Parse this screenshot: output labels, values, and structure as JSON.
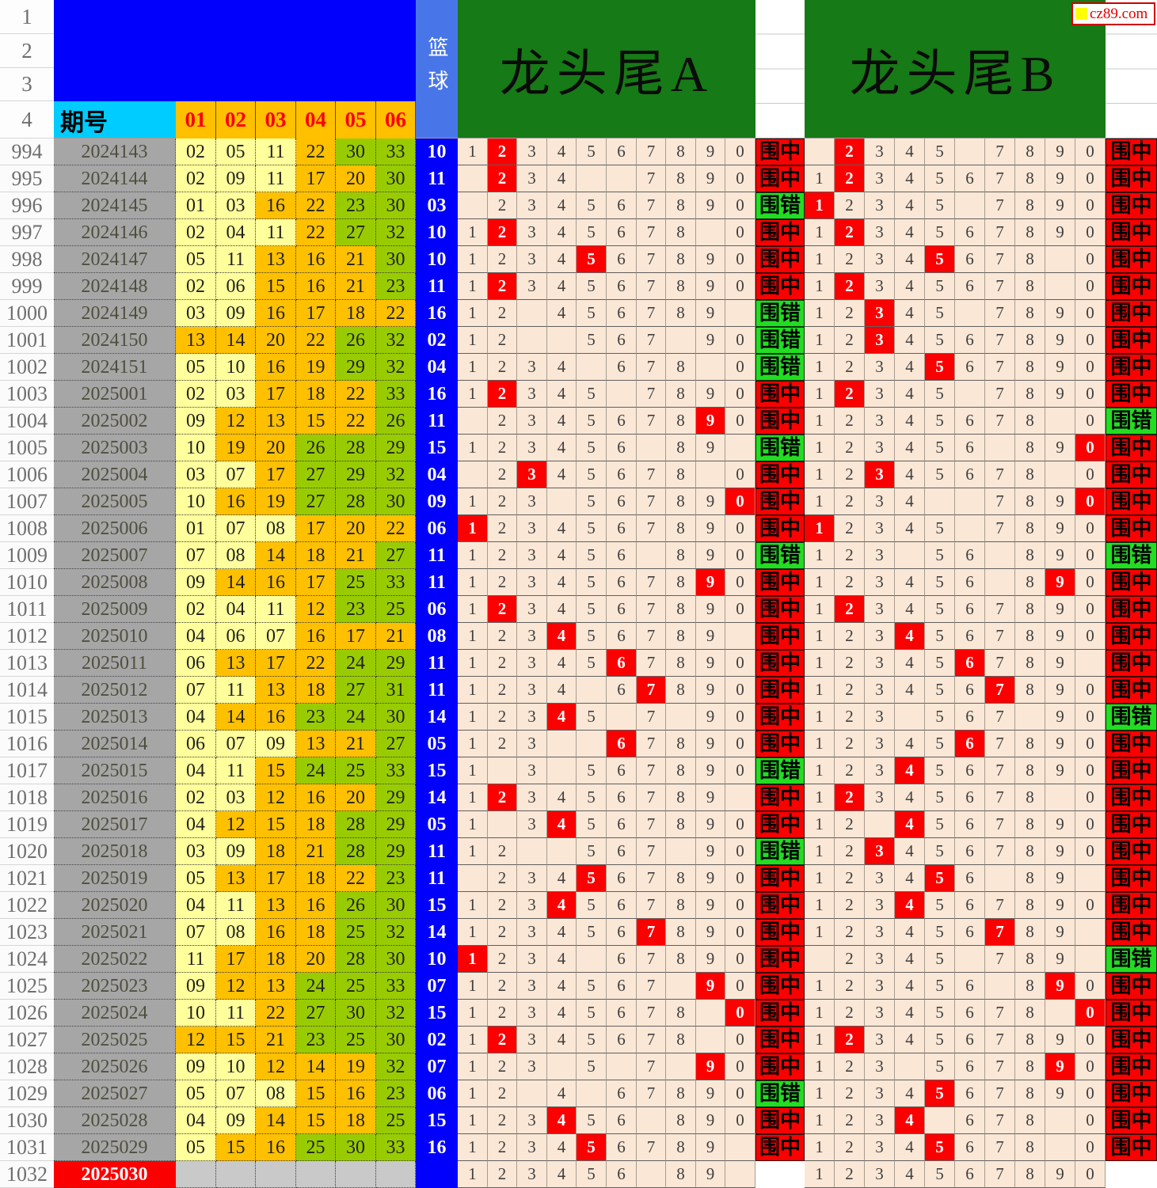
{
  "brand": {
    "site": "cz89.com"
  },
  "header": {
    "corner_rows": [
      "1",
      "2",
      "3",
      "4"
    ],
    "period_label": "期号",
    "ball_headers": [
      "01",
      "02",
      "03",
      "04",
      "05",
      "06"
    ],
    "basketball_label": "篮球",
    "section_a_title": "龙头尾A",
    "section_b_title": "龙头尾B"
  },
  "results": {
    "hit": "围中",
    "miss": "围错"
  },
  "colors": {
    "hit_bg": "#FB0000",
    "miss_bg": "#22DD22",
    "highlight": "#FB0000",
    "section_green": "#167A16",
    "ball_low": "#FFFF9C",
    "ball_mid": "#FFC000",
    "ball_high": "#99CC00",
    "blue_ball": "#0000FC",
    "period_gray": "#A6A6A6",
    "digit_bg": "#FAE7D6",
    "header_cyan": "#00CCFF",
    "header_orange": "#FFC000"
  },
  "rows": [
    {
      "n": "994",
      "p": "2024143",
      "balls": [
        "02",
        "05",
        "11",
        "22",
        "30",
        "33"
      ],
      "blue": "10",
      "a": "1234567890",
      "ar": 1,
      "ares": "hit",
      "b": ".2345.7890",
      "br": 1,
      "bres": "hit"
    },
    {
      "n": "995",
      "p": "2024144",
      "balls": [
        "02",
        "09",
        "11",
        "17",
        "20",
        "30"
      ],
      "blue": "11",
      "a": ".234..7890",
      "ar": 1,
      "ares": "hit",
      "b": "1234567890",
      "br": 1,
      "bres": "hit"
    },
    {
      "n": "996",
      "p": "2024145",
      "balls": [
        "01",
        "03",
        "16",
        "22",
        "23",
        "30"
      ],
      "blue": "03",
      "a": ".234567890",
      "ar": -1,
      "ares": "miss",
      "b": "12345.7890",
      "br": 0,
      "bres": "hit"
    },
    {
      "n": "997",
      "p": "2024146",
      "balls": [
        "02",
        "04",
        "11",
        "22",
        "27",
        "32"
      ],
      "blue": "10",
      "a": "12345678.0",
      "ar": 1,
      "ares": "hit",
      "b": "1234567890",
      "br": 1,
      "bres": "hit"
    },
    {
      "n": "998",
      "p": "2024147",
      "balls": [
        "05",
        "11",
        "13",
        "16",
        "21",
        "30"
      ],
      "blue": "10",
      "a": "1234567890",
      "ar": 4,
      "ares": "hit",
      "b": "12345678.0",
      "br": 4,
      "bres": "hit"
    },
    {
      "n": "999",
      "p": "2024148",
      "balls": [
        "02",
        "06",
        "15",
        "16",
        "21",
        "23"
      ],
      "blue": "11",
      "a": "1234567890",
      "ar": 1,
      "ares": "hit",
      "b": "12345678.0",
      "br": 1,
      "bres": "hit"
    },
    {
      "n": "1000",
      "p": "2024149",
      "balls": [
        "03",
        "09",
        "16",
        "17",
        "18",
        "22"
      ],
      "blue": "16",
      "a": "12.456789.",
      "ar": -1,
      "ares": "miss",
      "b": "12345.7890",
      "br": 2,
      "bres": "hit"
    },
    {
      "n": "1001",
      "p": "2024150",
      "balls": [
        "13",
        "14",
        "20",
        "22",
        "26",
        "32"
      ],
      "blue": "02",
      "a": "12..567.90",
      "ar": -1,
      "ares": "miss",
      "b": "1234567890",
      "br": 2,
      "bres": "hit"
    },
    {
      "n": "1002",
      "p": "2024151",
      "balls": [
        "05",
        "10",
        "16",
        "19",
        "29",
        "32"
      ],
      "blue": "04",
      "a": "1234.678.0",
      "ar": -1,
      "ares": "miss",
      "b": "1234567890",
      "br": 4,
      "bres": "hit"
    },
    {
      "n": "1003",
      "p": "2025001",
      "balls": [
        "02",
        "03",
        "17",
        "18",
        "22",
        "33"
      ],
      "blue": "16",
      "a": "12345.7890",
      "ar": 1,
      "ares": "hit",
      "b": "12345.7890",
      "br": 1,
      "bres": "hit"
    },
    {
      "n": "1004",
      "p": "2025002",
      "balls": [
        "09",
        "12",
        "13",
        "15",
        "22",
        "26"
      ],
      "blue": "11",
      "a": ".234567890",
      "ar": 8,
      "ares": "hit",
      "b": "12345678.0",
      "br": -1,
      "bres": "miss"
    },
    {
      "n": "1005",
      "p": "2025003",
      "balls": [
        "10",
        "19",
        "20",
        "26",
        "28",
        "29"
      ],
      "blue": "15",
      "a": "123456.89.",
      "ar": -1,
      "ares": "miss",
      "b": "123456.890",
      "br": 9,
      "bres": "hit"
    },
    {
      "n": "1006",
      "p": "2025004",
      "balls": [
        "03",
        "07",
        "17",
        "27",
        "29",
        "32"
      ],
      "blue": "04",
      "a": ".2345678.0",
      "ar": 2,
      "ares": "hit",
      "b": "12345678.0",
      "br": 2,
      "bres": "hit"
    },
    {
      "n": "1007",
      "p": "2025005",
      "balls": [
        "10",
        "16",
        "19",
        "27",
        "28",
        "30"
      ],
      "blue": "09",
      "a": "123.567890",
      "ar": 9,
      "ares": "hit",
      "b": "1234..7890",
      "br": 9,
      "bres": "hit"
    },
    {
      "n": "1008",
      "p": "2025006",
      "balls": [
        "01",
        "07",
        "08",
        "17",
        "20",
        "22"
      ],
      "blue": "06",
      "a": "1234567890",
      "ar": 0,
      "ares": "hit",
      "b": "12345.7890",
      "br": 0,
      "bres": "hit"
    },
    {
      "n": "1009",
      "p": "2025007",
      "balls": [
        "07",
        "08",
        "14",
        "18",
        "21",
        "27"
      ],
      "blue": "11",
      "a": "123456.890",
      "ar": -1,
      "ares": "miss",
      "b": "123.56.890",
      "br": -1,
      "bres": "miss"
    },
    {
      "n": "1010",
      "p": "2025008",
      "balls": [
        "09",
        "14",
        "16",
        "17",
        "25",
        "33"
      ],
      "blue": "11",
      "a": "1234567890",
      "ar": 8,
      "ares": "hit",
      "b": "123456.890",
      "br": 8,
      "bres": "hit"
    },
    {
      "n": "1011",
      "p": "2025009",
      "balls": [
        "02",
        "04",
        "11",
        "12",
        "23",
        "25"
      ],
      "blue": "06",
      "a": "1234567890",
      "ar": 1,
      "ares": "hit",
      "b": "1234567890",
      "br": 1,
      "bres": "hit"
    },
    {
      "n": "1012",
      "p": "2025010",
      "balls": [
        "04",
        "06",
        "07",
        "16",
        "17",
        "21"
      ],
      "blue": "08",
      "a": "123456789.",
      "ar": 3,
      "ares": "hit",
      "b": "1234567890",
      "br": 3,
      "bres": "hit"
    },
    {
      "n": "1013",
      "p": "2025011",
      "balls": [
        "06",
        "13",
        "17",
        "22",
        "24",
        "29"
      ],
      "blue": "11",
      "a": "1234567890",
      "ar": 5,
      "ares": "hit",
      "b": "123456789.",
      "br": 5,
      "bres": "hit"
    },
    {
      "n": "1014",
      "p": "2025012",
      "balls": [
        "07",
        "11",
        "13",
        "18",
        "27",
        "31"
      ],
      "blue": "11",
      "a": "1234.67890",
      "ar": 6,
      "ares": "hit",
      "b": "1234567890",
      "br": 6,
      "bres": "hit"
    },
    {
      "n": "1015",
      "p": "2025013",
      "balls": [
        "04",
        "14",
        "16",
        "23",
        "24",
        "30"
      ],
      "blue": "14",
      "a": "12345.7.90",
      "ar": 3,
      "ares": "hit",
      "b": "123.567.90",
      "br": -1,
      "bres": "miss"
    },
    {
      "n": "1016",
      "p": "2025014",
      "balls": [
        "06",
        "07",
        "09",
        "13",
        "21",
        "27"
      ],
      "blue": "05",
      "a": "123..67890",
      "ar": 5,
      "ares": "hit",
      "b": "1234567890",
      "br": 5,
      "bres": "hit"
    },
    {
      "n": "1017",
      "p": "2025015",
      "balls": [
        "04",
        "11",
        "15",
        "24",
        "25",
        "33"
      ],
      "blue": "15",
      "a": "1.3.567890",
      "ar": -1,
      "ares": "miss",
      "b": "1234567890",
      "br": 3,
      "bres": "hit"
    },
    {
      "n": "1018",
      "p": "2025016",
      "balls": [
        "02",
        "03",
        "12",
        "16",
        "20",
        "29"
      ],
      "blue": "14",
      "a": "123456789.",
      "ar": 1,
      "ares": "hit",
      "b": "12345678.0",
      "br": 1,
      "bres": "hit"
    },
    {
      "n": "1019",
      "p": "2025017",
      "balls": [
        "04",
        "12",
        "15",
        "18",
        "28",
        "29"
      ],
      "blue": "05",
      "a": "1.34567890",
      "ar": 3,
      "ares": "hit",
      "b": "12.4567890",
      "br": 3,
      "bres": "hit"
    },
    {
      "n": "1020",
      "p": "2025018",
      "balls": [
        "03",
        "09",
        "18",
        "21",
        "28",
        "29"
      ],
      "blue": "11",
      "a": "12..567.90",
      "ar": -1,
      "ares": "miss",
      "b": "1234567890",
      "br": 2,
      "bres": "hit"
    },
    {
      "n": "1021",
      "p": "2025019",
      "balls": [
        "05",
        "13",
        "17",
        "18",
        "22",
        "23"
      ],
      "blue": "11",
      "a": ".234567890",
      "ar": 4,
      "ares": "hit",
      "b": "123456.89.",
      "br": 4,
      "bres": "hit"
    },
    {
      "n": "1022",
      "p": "2025020",
      "balls": [
        "04",
        "11",
        "13",
        "16",
        "26",
        "30"
      ],
      "blue": "15",
      "a": "1234567890",
      "ar": 3,
      "ares": "hit",
      "b": "1234567890",
      "br": 3,
      "bres": "hit"
    },
    {
      "n": "1023",
      "p": "2025021",
      "balls": [
        "07",
        "08",
        "16",
        "18",
        "25",
        "32"
      ],
      "blue": "14",
      "a": "1234567890",
      "ar": 6,
      "ares": "hit",
      "b": "123456789.",
      "br": 6,
      "bres": "hit"
    },
    {
      "n": "1024",
      "p": "2025022",
      "balls": [
        "11",
        "17",
        "18",
        "20",
        "28",
        "30"
      ],
      "blue": "10",
      "a": "1234.67890",
      "ar": 0,
      "ares": "hit",
      "b": ".2345.789.",
      "br": -1,
      "bres": "miss"
    },
    {
      "n": "1025",
      "p": "2025023",
      "balls": [
        "09",
        "12",
        "13",
        "24",
        "25",
        "33"
      ],
      "blue": "07",
      "a": "1234567.90",
      "ar": 8,
      "ares": "hit",
      "b": "123456.890",
      "br": 8,
      "bres": "hit"
    },
    {
      "n": "1026",
      "p": "2025024",
      "balls": [
        "10",
        "11",
        "22",
        "27",
        "30",
        "32"
      ],
      "blue": "15",
      "a": "12345678.0",
      "ar": 9,
      "ares": "hit",
      "b": "12345678.0",
      "br": 9,
      "bres": "hit"
    },
    {
      "n": "1027",
      "p": "2025025",
      "balls": [
        "12",
        "15",
        "21",
        "23",
        "25",
        "30"
      ],
      "blue": "02",
      "a": "12345678.0",
      "ar": 1,
      "ares": "hit",
      "b": "1234567890",
      "br": 1,
      "bres": "hit"
    },
    {
      "n": "1028",
      "p": "2025026",
      "balls": [
        "09",
        "10",
        "12",
        "14",
        "19",
        "32"
      ],
      "blue": "07",
      "a": "123.5.7.90",
      "ar": 8,
      "ares": "hit",
      "b": "123.567890",
      "br": 8,
      "bres": "hit"
    },
    {
      "n": "1029",
      "p": "2025027",
      "balls": [
        "05",
        "07",
        "08",
        "15",
        "16",
        "23"
      ],
      "blue": "06",
      "a": "12.4.67890",
      "ar": -1,
      "ares": "miss",
      "b": "1234567890",
      "br": 4,
      "bres": "hit"
    },
    {
      "n": "1030",
      "p": "2025028",
      "balls": [
        "04",
        "09",
        "14",
        "15",
        "18",
        "25"
      ],
      "blue": "15",
      "a": "123456.890",
      "ar": 3,
      "ares": "hit",
      "b": "1234.678.0",
      "br": 3,
      "bres": "hit"
    },
    {
      "n": "1031",
      "p": "2025029",
      "balls": [
        "05",
        "15",
        "16",
        "25",
        "30",
        "33"
      ],
      "blue": "16",
      "a": "123456789.",
      "ar": 4,
      "ares": "hit",
      "b": "12345678.0",
      "br": 4,
      "bres": "hit"
    },
    {
      "n": "1032",
      "p": "2025030",
      "balls": [
        "",
        "",
        "",
        "",
        "",
        ""
      ],
      "blue": "",
      "a": "123456.89.",
      "ar": -1,
      "ares": "",
      "b": "1234567890",
      "br": -1,
      "bres": ""
    }
  ]
}
